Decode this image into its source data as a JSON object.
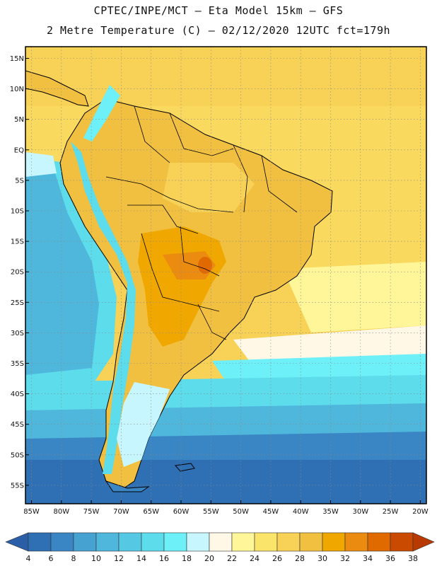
{
  "header": {
    "line1": "CPTEC/INPE/MCT –  Eta Model 15km – GFS",
    "line2": "2 Metre Temperature (C) – 02/12/2020 12UTC fct=179h"
  },
  "map": {
    "lat_labels": [
      "15N",
      "10N",
      "5N",
      "EQ",
      "5S",
      "10S",
      "15S",
      "20S",
      "25S",
      "30S",
      "35S",
      "40S",
      "45S",
      "50S",
      "55S"
    ],
    "lon_labels": [
      "85W",
      "80W",
      "75W",
      "70W",
      "65W",
      "60W",
      "55W",
      "50W",
      "45W",
      "40W",
      "35W",
      "30W",
      "25W",
      "20W"
    ]
  },
  "legend": {
    "colors": [
      "#2f6fb4",
      "#3a86c4",
      "#46a2d0",
      "#4fb7dc",
      "#55c9e4",
      "#5ddcec",
      "#6df0f8",
      "#c8f6ff",
      "#fff8e6",
      "#fff69a",
      "#fbe46a",
      "#f7d257",
      "#f1c040",
      "#f0a800",
      "#eb8b10",
      "#e06a00",
      "#c94a00"
    ],
    "end_low_color": "#2a5fa8",
    "end_high_color": "#b83a00",
    "labels": [
      "4",
      "6",
      "8",
      "10",
      "12",
      "14",
      "16",
      "18",
      "20",
      "22",
      "24",
      "26",
      "28",
      "30",
      "32",
      "34",
      "36",
      "38"
    ]
  }
}
